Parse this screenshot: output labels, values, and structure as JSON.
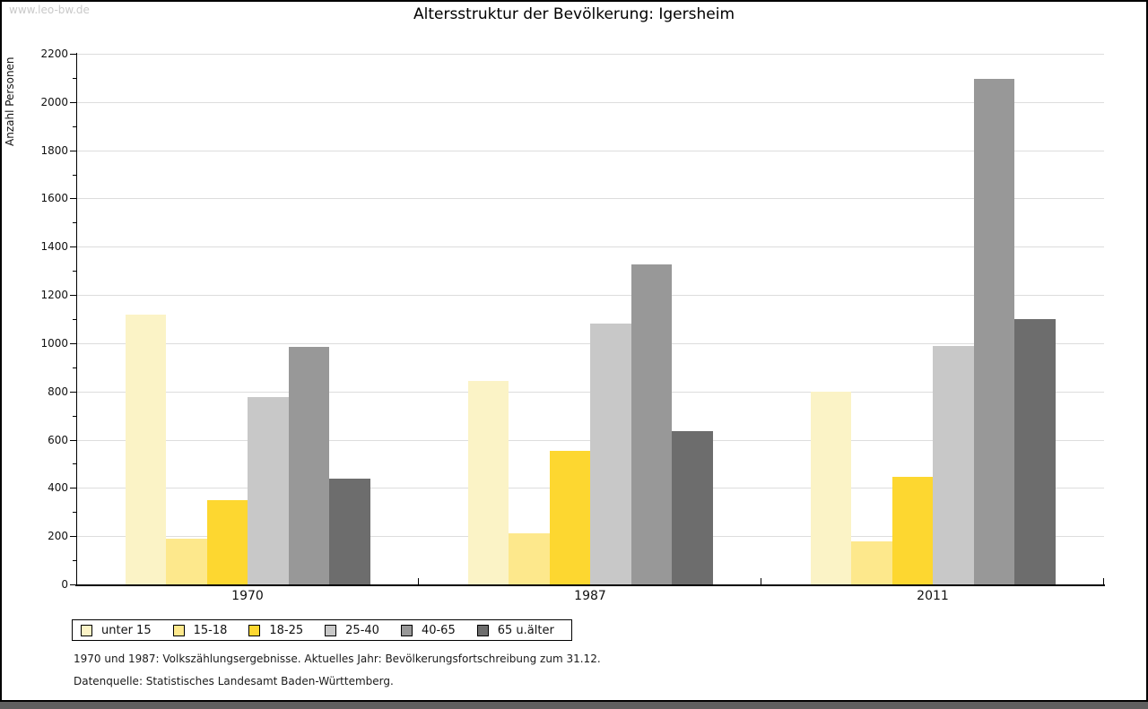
{
  "page": {
    "watermark": "www.leo-bw.de",
    "bottom_bar_color": "#5f5f5f",
    "frame_color": "#000000",
    "background": "#ffffff"
  },
  "chart_data": {
    "type": "bar",
    "title": "Altersstruktur der Bevölkerung: Igersheim",
    "ylabel": "Anzahl Personen",
    "xlabel": "",
    "categories": [
      "1970",
      "1987",
      "2011"
    ],
    "series": [
      {
        "name": "unter 15",
        "color": "#FBF3C6",
        "values": [
          1120,
          845,
          800
        ]
      },
      {
        "name": "15-18",
        "color": "#FDE88C",
        "values": [
          190,
          210,
          180
        ]
      },
      {
        "name": "18-25",
        "color": "#FDD730",
        "values": [
          350,
          555,
          445
        ]
      },
      {
        "name": "25-40",
        "color": "#C8C8C8",
        "values": [
          775,
          1080,
          990
        ]
      },
      {
        "name": "40-65",
        "color": "#989898",
        "values": [
          985,
          1325,
          2095
        ]
      },
      {
        "name": "65 u.älter",
        "color": "#6D6D6D",
        "values": [
          440,
          635,
          1100
        ]
      }
    ],
    "ylim": [
      0,
      2200
    ],
    "ytick_step": 200,
    "yminor_step": 100,
    "grid": true,
    "gridline_color": "#dddddd",
    "legend_position": "bottom-left"
  },
  "notes": {
    "line1": "1970 und 1987: Volkszählungsergebnisse. Aktuelles Jahr: Bevölkerungsfortschreibung zum 31.12.",
    "line2": "Datenquelle: Statistisches Landesamt Baden-Württemberg."
  }
}
